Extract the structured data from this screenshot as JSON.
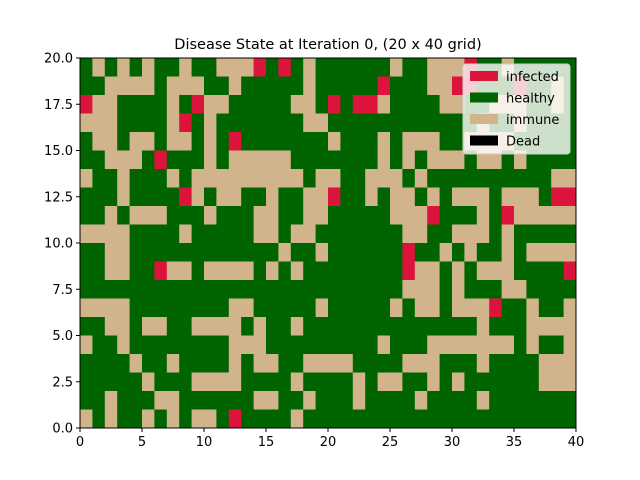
{
  "chart_data": {
    "type": "heatmap",
    "title": "Disease State at Iteration 0, (20 x 40 grid)",
    "xlabel": "",
    "ylabel": "",
    "xlim": [
      0,
      40
    ],
    "ylim": [
      0,
      20
    ],
    "xticks": [
      0,
      5,
      10,
      15,
      20,
      25,
      30,
      35,
      40
    ],
    "yticks": [
      0.0,
      2.5,
      5.0,
      7.5,
      10.0,
      12.5,
      15.0,
      17.5,
      20.0
    ],
    "xtick_labels": [
      "0",
      "5",
      "10",
      "15",
      "20",
      "25",
      "30",
      "35",
      "40"
    ],
    "ytick_labels": [
      "0.0",
      "2.5",
      "5.0",
      "7.5",
      "10.0",
      "12.5",
      "15.0",
      "17.5",
      "20.0"
    ],
    "legend_position": "upper right",
    "states": [
      {
        "code": "I",
        "name": "infected",
        "color": "#dc143c"
      },
      {
        "code": "H",
        "name": "healthy",
        "color": "#006400"
      },
      {
        "code": "M",
        "name": "immune",
        "color": "#d2b48c"
      },
      {
        "code": "D",
        "name": "Dead",
        "color": "#000000"
      }
    ],
    "grid_rows_top_to_bottom": [
      "HMHMHMHHMHHMMMIHIHMHHHHHHMHHMMMIHHMHHHHH",
      "HHMMMMHMMMHHMHHHHHMHHHHHIHHHMMIIHHHIHHMH",
      "IMMHHHHMHIMMHHHHHMMHIHIIMHHHHMMHHMMMHHMH",
      "MMMHHHHMIHMHHHHHHHMMHHHHHHHHHHHHMHHMHHHH",
      "HMMHMMHMMHMHIHHHHHHHMHHHMHMMMHHMMMMHHHHH",
      "HHMMMHIHHHMHMMMMMHHHHHHHMHMHMMMHMMHMHHHH",
      "MHHMHHHMHMMMMMMMMMHMMHHMMMHMHHHHHHHHHHMM",
      "HHHMHHHHIMHMMHHMHHMMIHHMHMMHMHMMMHMMMHII",
      "HHMHMMMHHHMHHHMMHHMMHHHHHMMMIHHHMHIMMMMM",
      "MMMMHHHHMHHHHHMMHMMHHHHHHHMMHHMMMHMHHHHH",
      "HHMMHHHHHHHHHHHHMHHMHHHHHHIHHMHMHHMHMMMM",
      "HHMMHHIMMHMMMMHMHMHHHHHHHHIMMHMHMMMHHHHI",
      "HHHHHHHHHHHHHHHHHHHHHHHHHHMMMHMHHHMMHHHH",
      "MMMMHHHHHHHHMMHHHHHMHHHHHMHMMHMMMIHHMHHM",
      "HHMMHMMHHMMMMHMHHMHHHHHHHHHHHHHHMHHHMMMM",
      "MHHMHHHHHHHHMMMHHHHHHHHHMHHHMMMMMMMHMHHM",
      "HHHHMHHMHHHHMHMMHHMMMMHHHHMMMHHHMHHHHMMM",
      "HHHHHMHHHMMMMHHHHMHHHHMHMMHHMHMHHHHHHMMM",
      "HHMHHHMMHHHHHHMMHHMHHHMHHHHMHHHHMHHHHHHH",
      "MHMHHMHMHMMHIHHHHMHHHHHHHHHHHHHHHHHHHHHH"
    ]
  }
}
